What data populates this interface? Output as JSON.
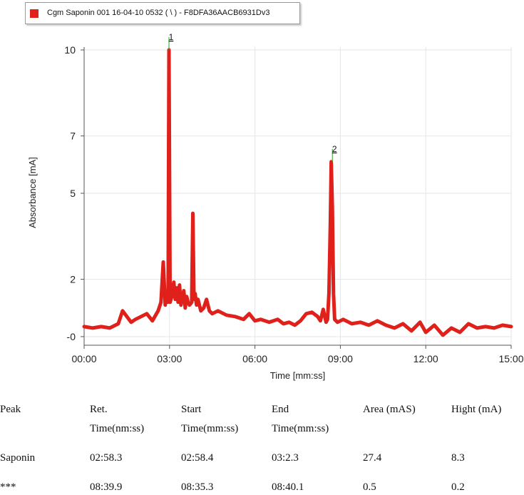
{
  "legend": {
    "label": "Cgm Saponin 001 16-04-10 0532  ( \\ ) - F8DFA36AACB6931Dv3",
    "color": "#e0201a"
  },
  "chart_data": {
    "type": "line",
    "title": "",
    "xlabel": "Time [mm:ss]",
    "ylabel": "Absorbance [mA]",
    "xlim": [
      0,
      15
    ],
    "ylim": [
      -0.3,
      10.1
    ],
    "x_ticks": [
      0,
      3,
      6,
      9,
      12,
      15
    ],
    "x_tick_labels": [
      "00:00",
      "03:00",
      "06:00",
      "09:00",
      "12:00",
      "15:00"
    ],
    "y_ticks": [
      0,
      2,
      5,
      7,
      10
    ],
    "y_tick_labels": [
      "-0",
      "2",
      "5",
      "7",
      "10"
    ],
    "grid": true,
    "series": [
      {
        "name": "Cgm Saponin 001 16-04-10 0532",
        "color": "#e0201a",
        "x": [
          0.0,
          0.3,
          0.6,
          0.9,
          1.2,
          1.35,
          1.5,
          1.65,
          1.8,
          2.0,
          2.2,
          2.4,
          2.6,
          2.7,
          2.78,
          2.85,
          2.9,
          2.95,
          2.98,
          3.02,
          3.08,
          3.15,
          3.2,
          3.25,
          3.3,
          3.35,
          3.4,
          3.5,
          3.55,
          3.6,
          3.65,
          3.7,
          3.78,
          3.82,
          3.86,
          3.9,
          3.95,
          4.0,
          4.1,
          4.2,
          4.3,
          4.4,
          4.5,
          4.7,
          5.0,
          5.3,
          5.6,
          5.8,
          6.0,
          6.2,
          6.5,
          6.8,
          7.0,
          7.2,
          7.4,
          7.6,
          7.8,
          8.0,
          8.2,
          8.3,
          8.4,
          8.5,
          8.55,
          8.6,
          8.65,
          8.68,
          8.72,
          8.76,
          8.8,
          8.9,
          9.1,
          9.4,
          9.7,
          10.0,
          10.3,
          10.6,
          10.9,
          11.2,
          11.5,
          11.8,
          12.0,
          12.3,
          12.6,
          12.9,
          13.2,
          13.5,
          13.8,
          14.1,
          14.4,
          14.7,
          15.0
        ],
        "values": [
          0.35,
          0.3,
          0.35,
          0.3,
          0.45,
          0.9,
          0.7,
          0.5,
          0.6,
          0.7,
          0.8,
          0.55,
          0.9,
          1.2,
          2.6,
          1.1,
          1.5,
          1.2,
          10.0,
          1.2,
          1.4,
          1.9,
          1.3,
          1.7,
          1.2,
          1.8,
          1.1,
          1.6,
          1.0,
          1.4,
          1.2,
          1.1,
          1.2,
          4.3,
          1.3,
          1.5,
          1.1,
          1.3,
          0.9,
          1.0,
          1.3,
          0.9,
          0.8,
          0.9,
          0.75,
          0.7,
          0.6,
          0.8,
          0.55,
          0.6,
          0.5,
          0.6,
          0.45,
          0.5,
          0.4,
          0.55,
          0.8,
          0.85,
          0.7,
          0.55,
          0.95,
          0.5,
          0.6,
          1.5,
          4.0,
          6.1,
          4.5,
          1.5,
          0.6,
          0.5,
          0.6,
          0.45,
          0.5,
          0.4,
          0.55,
          0.4,
          0.3,
          0.45,
          0.2,
          0.5,
          0.15,
          0.4,
          0.05,
          0.3,
          0.15,
          0.45,
          0.3,
          0.35,
          0.3,
          0.4,
          0.35
        ]
      }
    ],
    "annotations": [
      {
        "label": "1",
        "x": 2.98,
        "y": 10.0
      },
      {
        "label": "2",
        "x": 8.72,
        "y": 6.1
      }
    ]
  },
  "table": {
    "headers": [
      [
        "Peak",
        ""
      ],
      [
        "Ret.",
        "Time(nm:ss)"
      ],
      [
        "Start",
        "Time(mm:ss)"
      ],
      [
        "End",
        "Time(mm:ss)"
      ],
      [
        "Area (mAS)",
        ""
      ],
      [
        "Hight (mA)",
        ""
      ]
    ],
    "rows": [
      [
        "Saponin",
        "02:58.3",
        "02:58.4",
        "03:2.3",
        "27.4",
        "8.3"
      ],
      [
        "***",
        "08:39.9",
        "08:35.3",
        "08:40.1",
        "0.5",
        "0.2"
      ]
    ]
  }
}
